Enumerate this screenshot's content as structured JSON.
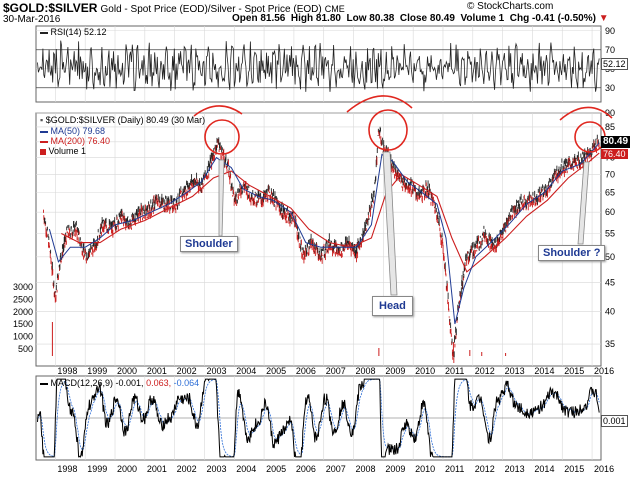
{
  "header": {
    "symbol": "$GOLD:$SILVER",
    "description": "Gold - Spot Price (EOD)/Silver - Spot Price (EOD)",
    "exchange": "CME",
    "date": "30-Mar-2016",
    "open": "Open 81.56",
    "high": "High 81.80",
    "low": "Low 80.38",
    "close": "Close 80.49",
    "volume": "Volume 1",
    "chg": "Chg -0.41 (-0.50%)",
    "brand": "© StockCharts.com"
  },
  "colors": {
    "price": "#222222",
    "ma50": "#1f3a93",
    "ma200": "#cc1e1e",
    "down": "#cc1e1e",
    "annotation": "#e0271f",
    "callout_text": "#1f3a93",
    "macd_signal": "#2f6fd6",
    "grid": "#d8d8d8"
  },
  "chart_data": [
    {
      "type": "line",
      "title": "RSI(14) 52.12",
      "legend": [
        "RSI(14) 52.12"
      ],
      "y_ticks": [
        30,
        50,
        70,
        90
      ],
      "ylim": [
        15,
        95
      ],
      "last_value": 52.12,
      "overbought": 70,
      "oversold": 30
    },
    {
      "type": "line",
      "title": "$GOLD:$SILVER (Daily) 80.49 (30 Mar)",
      "legend": [
        "$GOLD:$SILVER (Daily) 80.49 (30 Mar)",
        "MA(50) 79.68",
        "MA(200) 76.40",
        "Volume 1"
      ],
      "x": [
        "1998",
        "1999",
        "2000",
        "2001",
        "2002",
        "2003",
        "2004",
        "2005",
        "2006",
        "2007",
        "2008",
        "2009",
        "2010",
        "2011",
        "2012",
        "2013",
        "2014",
        "2015",
        "2016"
      ],
      "x_ticks": [
        "1998",
        "1999",
        "2000",
        "2001",
        "2002",
        "2003",
        "2004",
        "2005",
        "2006",
        "2007",
        "2008",
        "2009",
        "2010",
        "2011",
        "2012",
        "2013",
        "2014",
        "2015",
        "2016"
      ],
      "y_scale": "log",
      "ylim": [
        32,
        90
      ],
      "y_ticks": [
        35,
        40,
        45,
        50,
        55,
        60,
        65,
        70,
        75,
        80,
        85,
        90
      ],
      "volume_ticks": [
        "3000",
        "2500",
        "2000",
        "1500",
        "1000",
        "500"
      ],
      "series": [
        {
          "name": "$GOLD:$SILVER (Daily) 80.49 (30 Mar)",
          "points": [
            [
              1997.6,
              60
            ],
            [
              1997.8,
              52
            ],
            [
              1998.0,
              42
            ],
            [
              1998.15,
              49
            ],
            [
              1998.4,
              55
            ],
            [
              1998.7,
              56
            ],
            [
              1999.0,
              50
            ],
            [
              1999.3,
              52
            ],
            [
              1999.6,
              57
            ],
            [
              1999.9,
              56
            ],
            [
              2000.2,
              59
            ],
            [
              2000.5,
              57
            ],
            [
              2000.8,
              60
            ],
            [
              2001.1,
              60
            ],
            [
              2001.4,
              63
            ],
            [
              2001.7,
              62
            ],
            [
              2002.0,
              62
            ],
            [
              2002.3,
              65
            ],
            [
              2002.6,
              68
            ],
            [
              2002.9,
              67
            ],
            [
              2003.2,
              73
            ],
            [
              2003.45,
              80
            ],
            [
              2003.6,
              76
            ],
            [
              2003.8,
              72
            ],
            [
              2004.0,
              63
            ],
            [
              2004.3,
              67
            ],
            [
              2004.6,
              64
            ],
            [
              2004.9,
              63
            ],
            [
              2005.2,
              65
            ],
            [
              2005.5,
              61
            ],
            [
              2005.8,
              59
            ],
            [
              2006.0,
              59
            ],
            [
              2006.3,
              50
            ],
            [
              2006.6,
              53
            ],
            [
              2006.9,
              50
            ],
            [
              2007.2,
              53
            ],
            [
              2007.5,
              51
            ],
            [
              2007.8,
              53
            ],
            [
              2008.1,
              51
            ],
            [
              2008.4,
              56
            ],
            [
              2008.7,
              65
            ],
            [
              2008.85,
              84
            ],
            [
              2009.0,
              78
            ],
            [
              2009.3,
              73
            ],
            [
              2009.6,
              68
            ],
            [
              2009.9,
              67
            ],
            [
              2010.2,
              64
            ],
            [
              2010.5,
              66
            ],
            [
              2010.8,
              60
            ],
            [
              2011.0,
              52
            ],
            [
              2011.2,
              40
            ],
            [
              2011.35,
              33
            ],
            [
              2011.5,
              40
            ],
            [
              2011.8,
              50
            ],
            [
              2012.1,
              52
            ],
            [
              2012.4,
              55
            ],
            [
              2012.7,
              52
            ],
            [
              2013.0,
              55
            ],
            [
              2013.3,
              60
            ],
            [
              2013.6,
              62
            ],
            [
              2013.9,
              63
            ],
            [
              2014.2,
              64
            ],
            [
              2014.5,
              66
            ],
            [
              2014.8,
              70
            ],
            [
              2015.0,
              72
            ],
            [
              2015.3,
              73
            ],
            [
              2015.6,
              74
            ],
            [
              2015.9,
              76
            ],
            [
              2016.1,
              79
            ],
            [
              2016.24,
              80.49
            ]
          ]
        },
        {
          "name": "MA(50) 79.68",
          "points": [
            [
              1997.8,
              56
            ],
            [
              1998.1,
              49
            ],
            [
              1998.5,
              52
            ],
            [
              1999.0,
              52
            ],
            [
              1999.5,
              54
            ],
            [
              2000.0,
              57
            ],
            [
              2000.6,
              58
            ],
            [
              2001.2,
              60
            ],
            [
              2001.8,
              62
            ],
            [
              2002.4,
              65
            ],
            [
              2002.9,
              68
            ],
            [
              2003.4,
              75
            ],
            [
              2003.9,
              72
            ],
            [
              2004.3,
              66
            ],
            [
              2004.8,
              64
            ],
            [
              2005.3,
              63
            ],
            [
              2005.9,
              60
            ],
            [
              2006.4,
              53
            ],
            [
              2006.9,
              52
            ],
            [
              2007.5,
              52
            ],
            [
              2008.1,
              52
            ],
            [
              2008.6,
              57
            ],
            [
              2008.95,
              76
            ],
            [
              2009.3,
              74
            ],
            [
              2009.8,
              68
            ],
            [
              2010.3,
              65
            ],
            [
              2010.8,
              62
            ],
            [
              2011.1,
              54
            ],
            [
              2011.4,
              38
            ],
            [
              2011.7,
              44
            ],
            [
              2012.1,
              50
            ],
            [
              2012.6,
              53
            ],
            [
              2013.2,
              57
            ],
            [
              2013.8,
              62
            ],
            [
              2014.4,
              65
            ],
            [
              2015.0,
              71
            ],
            [
              2015.6,
              73
            ],
            [
              2016.0,
              77
            ],
            [
              2016.24,
              79.68
            ]
          ]
        },
        {
          "name": "MA(200) 76.40",
          "points": [
            [
              1998.2,
              55
            ],
            [
              1998.8,
              53
            ],
            [
              1999.5,
              53
            ],
            [
              2000.2,
              56
            ],
            [
              2001.0,
              58
            ],
            [
              2001.8,
              61
            ],
            [
              2002.6,
              64
            ],
            [
              2003.3,
              69
            ],
            [
              2003.9,
              71
            ],
            [
              2004.5,
              67
            ],
            [
              2005.2,
              64
            ],
            [
              2005.9,
              61
            ],
            [
              2006.5,
              56
            ],
            [
              2007.2,
              53
            ],
            [
              2007.9,
              52
            ],
            [
              2008.6,
              54
            ],
            [
              2009.1,
              65
            ],
            [
              2009.6,
              70
            ],
            [
              2010.2,
              67
            ],
            [
              2010.8,
              64
            ],
            [
              2011.3,
              54
            ],
            [
              2011.8,
              47
            ],
            [
              2012.4,
              50
            ],
            [
              2013.1,
              54
            ],
            [
              2013.8,
              59
            ],
            [
              2014.5,
              63
            ],
            [
              2015.2,
              69
            ],
            [
              2015.8,
              73
            ],
            [
              2016.24,
              76.4
            ]
          ]
        }
      ],
      "annotations": [
        "Shoulder",
        "Head",
        "Shoulder ?"
      ],
      "last_value": 80.49,
      "ma200_last": 76.4,
      "grid": true
    },
    {
      "type": "line",
      "title": "MACD(12,26,9) -0.001, 0.063, -0.064",
      "legend": [
        "MACD(12,26,9) -0.001,",
        "0.063,",
        "-0.064"
      ],
      "x_ticks": [
        "1998",
        "1999",
        "2000",
        "2001",
        "2002",
        "2003",
        "2004",
        "2005",
        "2006",
        "2007",
        "2008",
        "2009",
        "2010",
        "2011",
        "2012",
        "2013",
        "2014",
        "2015",
        "2016"
      ],
      "y_ticks": [
        "0.001"
      ],
      "ylim": [
        -4,
        4
      ],
      "last_value": -0.001
    }
  ],
  "texts": {
    "rsi_label": "RSI(14) 52.12",
    "rsi_value": "52.12",
    "main_title": "$GOLD:$SILVER (Daily) 80.49 (30 Mar)",
    "ma50_label": "MA(50) 79.68",
    "ma200_label": "MA(200) 76.40",
    "volume_label": "Volume 1",
    "price_tag": "80.49",
    "ma200_tag": "76.40",
    "macd_title": "MACD(12,26,9) -0.001,",
    "macd_v1": "0.063,",
    "macd_v2": "-0.064",
    "macd_tag": "0.001",
    "callout_shoulder": "Shoulder",
    "callout_head": "Head",
    "callout_shoulder2": "Shoulder ?"
  }
}
